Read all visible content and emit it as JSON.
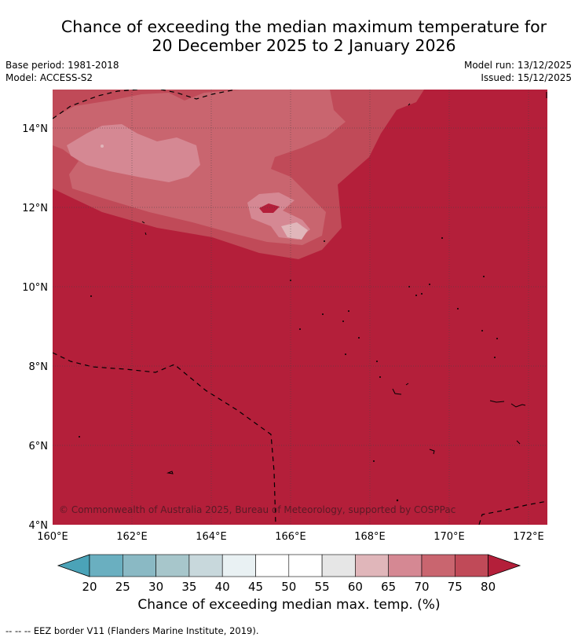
{
  "header": {
    "title_line1": "Chance of exceeding the median maximum temperature for",
    "title_line2": "20 December 2025 to 2 January 2026",
    "base_period": "Base period: 1981-2018",
    "model": "Model: ACCESS-S2",
    "model_run": "Model run: 13/12/2025",
    "issued": "Issued: 15/12/2025"
  },
  "map": {
    "lat_ticks": [
      "14°N",
      "12°N",
      "10°N",
      "8°N",
      "6°N",
      "4°N"
    ],
    "lon_ticks": [
      "160°E",
      "162°E",
      "164°E",
      "166°E",
      "168°E",
      "170°E",
      "172°E"
    ],
    "copyright": "© Commonwealth of Australia 2025, Bureau of Meteorology, supported by COSPPac"
  },
  "colorbar": {
    "labels": [
      "20",
      "25",
      "30",
      "35",
      "40",
      "45",
      "50",
      "55",
      "60",
      "65",
      "70",
      "75",
      "80"
    ],
    "colors": [
      "#4ba3b8",
      "#6aafc0",
      "#8ab9c4",
      "#a7c6cb",
      "#c8d8dc",
      "#e9f1f3",
      "#ffffff",
      "#ffffff",
      "#e6e6e6",
      "#e0b6ba",
      "#d58893",
      "#c9656f",
      "#c04a58",
      "#b41f3a"
    ],
    "title": "Chance of exceeding median max. temp. (%)"
  },
  "footer": {
    "legend": "--  --  -- EEZ border V11 (Flanders Marine Institute, 2019)."
  }
}
